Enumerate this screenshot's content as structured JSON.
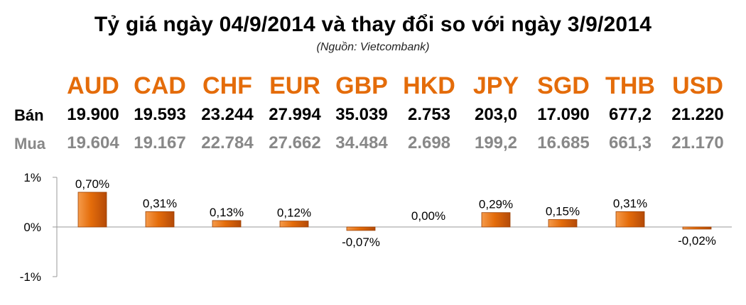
{
  "header": {
    "title": "Tỷ giá ngày 04/9/2014 và thay đổi so với ngày 3/9/2014",
    "source": "(Nguồn: Vietcombank)"
  },
  "table": {
    "row_labels": {
      "sell": "Bán",
      "buy": "Mua"
    },
    "currencies": [
      {
        "code": "AUD",
        "sell": "19.900",
        "buy": "19.604"
      },
      {
        "code": "CAD",
        "sell": "19.593",
        "buy": "19.167"
      },
      {
        "code": "CHF",
        "sell": "23.244",
        "buy": "22.784"
      },
      {
        "code": "EUR",
        "sell": "27.994",
        "buy": "27.662"
      },
      {
        "code": "GBP",
        "sell": "35.039",
        "buy": "34.484"
      },
      {
        "code": "HKD",
        "sell": "2.753",
        "buy": "2.698"
      },
      {
        "code": "JPY",
        "sell": "203,0",
        "buy": "199,2"
      },
      {
        "code": "SGD",
        "sell": "17.090",
        "buy": "16.685"
      },
      {
        "code": "THB",
        "sell": "677,2",
        "buy": "661,3"
      },
      {
        "code": "USD",
        "sell": "21.220",
        "buy": "21.170"
      }
    ]
  },
  "colors": {
    "accent": "#e46c0a",
    "bar_light": "#f59a4a",
    "bar_dark": "#b44a08",
    "muted_text": "#888888"
  },
  "chart_data": {
    "type": "bar",
    "categories": [
      "AUD",
      "CAD",
      "CHF",
      "EUR",
      "GBP",
      "HKD",
      "JPY",
      "SGD",
      "THB",
      "USD"
    ],
    "values": [
      0.7,
      0.31,
      0.13,
      0.12,
      -0.07,
      0.0,
      0.29,
      0.15,
      0.31,
      -0.02
    ],
    "data_labels": [
      "0,70%",
      "0,31%",
      "0,13%",
      "0,12%",
      "-0,07%",
      "0,00%",
      "0,29%",
      "0,15%",
      "0,31%",
      "-0,02%"
    ],
    "yticks": [
      "1%",
      "0%",
      "-1%"
    ],
    "ytick_values": [
      1,
      0,
      -1
    ],
    "ylim": [
      -1,
      1
    ],
    "grid": false,
    "legend": "none"
  }
}
